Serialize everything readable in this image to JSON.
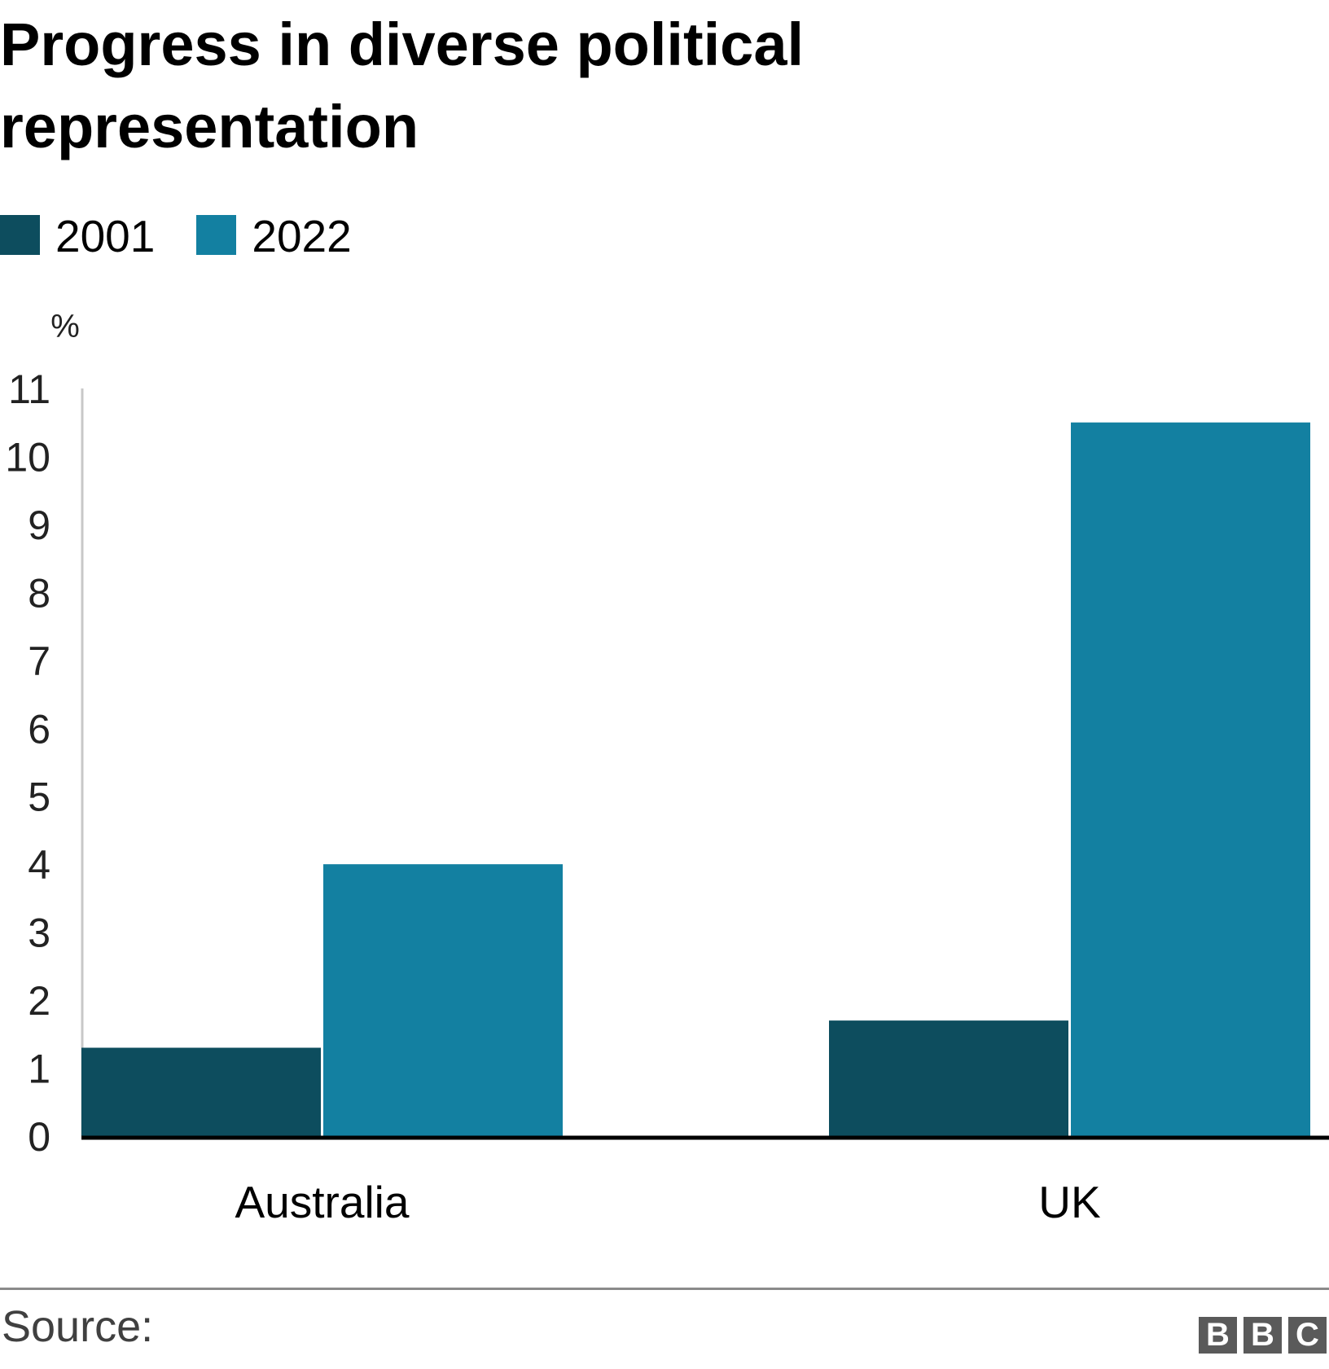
{
  "chart_data": {
    "type": "bar",
    "title": "Progress in diverse political representation",
    "title_lines": [
      "Progress in diverse political",
      "representation"
    ],
    "categories": [
      "Australia",
      "UK"
    ],
    "series": [
      {
        "name": "2001",
        "values": [
          1.3,
          1.7
        ],
        "color": "#0d4d5e"
      },
      {
        "name": "2022",
        "values": [
          4.0,
          10.5
        ],
        "color": "#1380a1"
      }
    ],
    "xlabel": "",
    "ylabel": "%",
    "ylim": [
      0,
      11
    ],
    "yticks": [
      0,
      1,
      2,
      3,
      4,
      5,
      6,
      7,
      8,
      9,
      10,
      11
    ],
    "grid": false,
    "legend_position": "top-left"
  },
  "footer": {
    "source_label": "Source:",
    "logo_letters": [
      "B",
      "B",
      "C"
    ]
  }
}
